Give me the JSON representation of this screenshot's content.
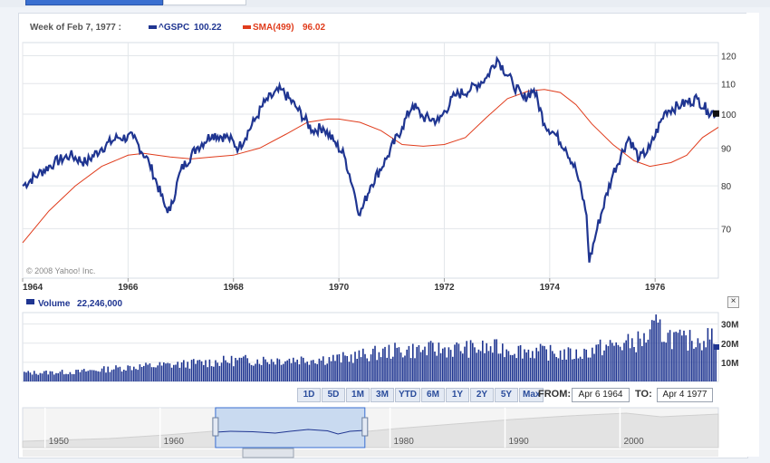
{
  "header": {
    "date_label": "Week of Feb 7, 1977 :",
    "gspc_label": "^GSPC",
    "gspc_value": "100.22",
    "sma_label": "SMA(499)",
    "sma_value": "96.02"
  },
  "copyright": "© 2008 Yahoo! Inc.",
  "volume": {
    "label": "Volume",
    "value": "22,246,000"
  },
  "range_buttons": [
    "1D",
    "5D",
    "1M",
    "3M",
    "YTD",
    "6M",
    "1Y",
    "2Y",
    "5Y",
    "Max"
  ],
  "from": {
    "label": "FROM:",
    "value": "Apr 6 1964"
  },
  "to": {
    "label": "TO:",
    "value": "Apr 4 1977"
  },
  "close_label": "×",
  "colors": {
    "price": "#1f3591",
    "sma": "#e03c1c",
    "volume": "#1f3591",
    "accent": "#3a6fd0"
  },
  "chart_data": [
    {
      "type": "line",
      "title": "",
      "x_ticks": [
        "1964",
        "1966",
        "1968",
        "1970",
        "1972",
        "1974",
        "1976"
      ],
      "y_ticks": [
        70,
        80,
        90,
        100,
        110,
        120
      ],
      "ylim": [
        60,
        125
      ],
      "xlim": [
        1964.0,
        1977.2
      ],
      "y_scale": "log",
      "grid": true,
      "legend": "top-left",
      "series": [
        {
          "name": "^GSPC",
          "x": [
            1964.0,
            1964.3,
            1964.6,
            1964.9,
            1965.2,
            1965.5,
            1965.8,
            1966.1,
            1966.4,
            1966.7,
            1966.8,
            1967.0,
            1967.3,
            1967.6,
            1967.9,
            1968.1,
            1968.4,
            1968.6,
            1968.9,
            1969.2,
            1969.5,
            1969.7,
            1969.9,
            1970.1,
            1970.3,
            1970.4,
            1970.6,
            1970.9,
            1971.2,
            1971.4,
            1971.6,
            1971.9,
            1972.2,
            1972.5,
            1972.8,
            1973.0,
            1973.3,
            1973.5,
            1973.7,
            1973.9,
            1974.1,
            1974.3,
            1974.5,
            1974.7,
            1974.75,
            1974.9,
            1975.2,
            1975.5,
            1975.7,
            1975.9,
            1976.2,
            1976.5,
            1976.8,
            1977.0,
            1977.2
          ],
          "values": [
            80,
            83,
            86,
            88,
            86,
            90,
            93,
            93,
            86,
            75,
            74,
            84,
            90,
            94,
            93,
            90,
            98,
            104,
            108,
            102,
            95,
            96,
            92,
            88,
            78,
            73,
            80,
            87,
            96,
            103,
            99,
            98,
            106,
            108,
            112,
            119,
            110,
            105,
            108,
            97,
            94,
            90,
            84,
            73,
            63,
            70,
            83,
            93,
            87,
            90,
            101,
            103,
            105,
            101,
            100.22
          ]
        },
        {
          "name": "SMA(499)",
          "x": [
            1964.0,
            1964.5,
            1965.0,
            1965.5,
            1966.0,
            1966.3,
            1966.8,
            1967.2,
            1967.6,
            1968.0,
            1968.5,
            1969.0,
            1969.4,
            1969.8,
            1970.0,
            1970.4,
            1970.8,
            1971.2,
            1971.6,
            1972.0,
            1972.4,
            1972.8,
            1973.2,
            1973.6,
            1973.9,
            1974.2,
            1974.5,
            1974.8,
            1975.2,
            1975.6,
            1975.9,
            1976.3,
            1976.6,
            1976.9,
            1977.2
          ],
          "values": [
            67,
            74,
            80,
            85,
            88,
            88.5,
            87.5,
            87,
            87.5,
            88,
            90,
            94,
            97.5,
            98.5,
            98.5,
            97.5,
            95,
            91,
            90.5,
            91,
            93,
            99,
            105,
            107.5,
            108,
            107,
            103,
            97,
            91,
            86.5,
            85,
            86,
            88,
            93,
            96.02
          ]
        }
      ]
    },
    {
      "type": "bar",
      "title": "",
      "ylabel": "",
      "y_ticks": [
        "10M",
        "20M",
        "30M"
      ],
      "ylim": [
        0,
        36
      ],
      "series": [
        {
          "name": "Volume",
          "x": [
            1964.0,
            1965.0,
            1966.0,
            1967.0,
            1968.0,
            1969.0,
            1970.0,
            1971.0,
            1972.0,
            1973.0,
            1974.0,
            1974.5,
            1975.0,
            1975.5,
            1975.8,
            1976.0,
            1976.1,
            1976.5,
            1977.0,
            1977.2
          ],
          "values": [
            4.5,
            5,
            7.5,
            9,
            11,
            11.5,
            12,
            16,
            17,
            17.5,
            15,
            14,
            18,
            20,
            22,
            29,
            26,
            21,
            23,
            22.246
          ]
        }
      ]
    },
    {
      "type": "area",
      "title": "",
      "x_ticks": [
        "1950",
        "1960",
        "1970",
        "1980",
        "1990",
        "2000"
      ],
      "xlim": [
        1947.5,
        2008.0
      ],
      "selected_range": [
        "Apr 6 1964",
        "Apr 4 1977"
      ]
    }
  ]
}
